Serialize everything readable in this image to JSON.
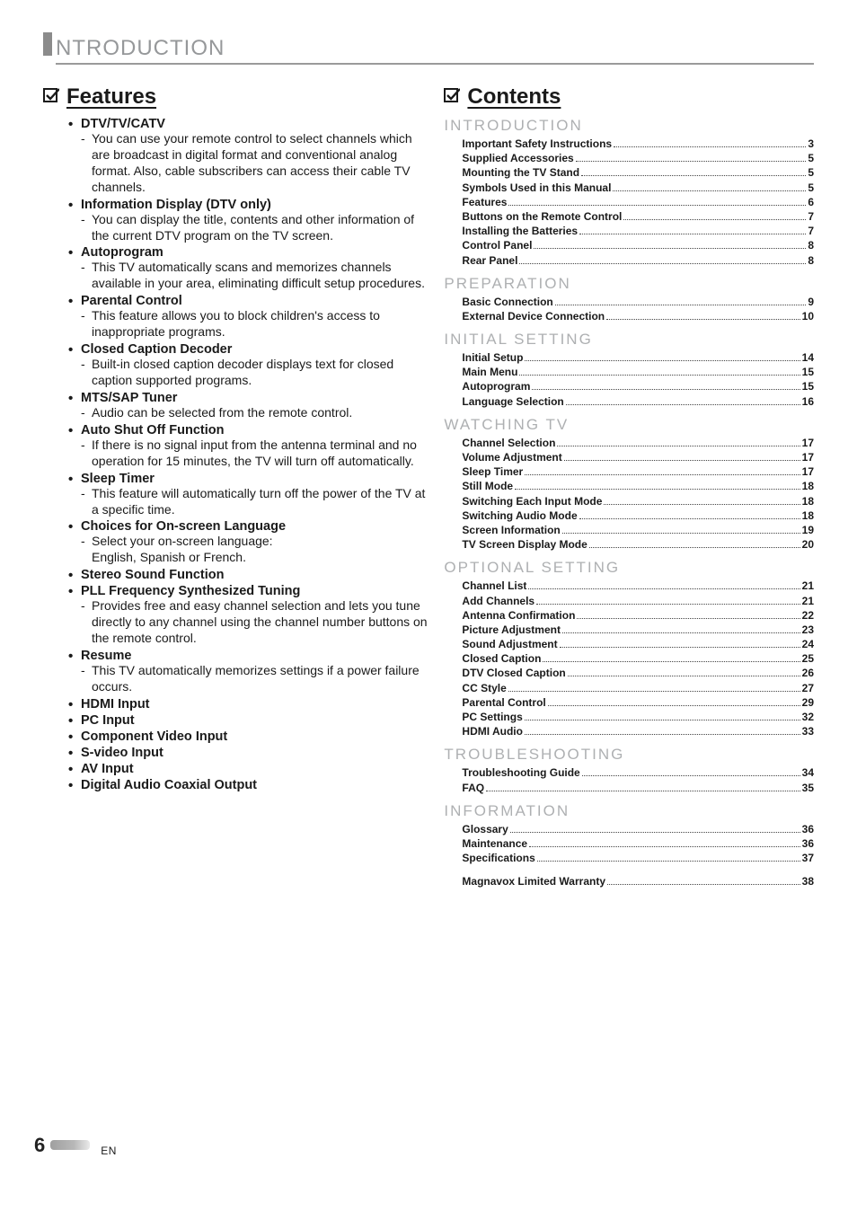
{
  "colors": {
    "chapter_gray": "#96989a",
    "tab_gray": "#8b8b8b",
    "toc_section_gray": "#aeb0b2",
    "text": "#1a1a1a",
    "dot": "#444444",
    "bg": "#ffffff"
  },
  "chapter_title": "NTRODUCTION",
  "chapter_dropcap": "I",
  "left": {
    "section_title": "Features",
    "items": [
      {
        "title": "DTV/TV/CATV",
        "desc": "You can use your remote control to select channels which are broadcast in digital format and conventional analog format. Also, cable subscribers can access their cable TV channels."
      },
      {
        "title": "Information Display (DTV only)",
        "desc": "You can display the title, contents and other information of the current DTV program on the TV screen."
      },
      {
        "title": "Autoprogram",
        "desc": "This TV automatically scans and memorizes channels available in your area, eliminating difficult setup procedures."
      },
      {
        "title": "Parental Control",
        "desc": "This feature allows you to block children's access to inappropriate programs."
      },
      {
        "title": "Closed Caption Decoder",
        "desc": "Built-in closed caption decoder displays text for closed caption supported programs."
      },
      {
        "title": "MTS/SAP Tuner",
        "desc": "Audio can be selected from the remote control."
      },
      {
        "title": "Auto Shut Off Function",
        "desc": "If there is no signal input from the antenna terminal and no operation for 15 minutes, the TV will turn off automatically."
      },
      {
        "title": "Sleep Timer",
        "desc": "This feature will automatically turn off the power of the TV at a specific time."
      },
      {
        "title": "Choices for On-screen Language",
        "desc": "Select your on-screen language:\nEnglish, Spanish or French."
      },
      {
        "title": "Stereo Sound Function"
      },
      {
        "title": "PLL Frequency Synthesized Tuning",
        "desc": "Provides free and easy channel selection and lets you tune directly to any channel using the channel number buttons on the remote control."
      },
      {
        "title": "Resume",
        "desc": "This TV automatically memorizes settings if a power failure occurs."
      },
      {
        "title": "HDMI Input"
      },
      {
        "title": "PC Input"
      },
      {
        "title": "Component Video Input"
      },
      {
        "title": "S-video Input"
      },
      {
        "title": "AV Input"
      },
      {
        "title": "Digital Audio Coaxial Output"
      }
    ]
  },
  "right": {
    "section_title": "Contents",
    "sections": [
      {
        "title": "INTRODUCTION",
        "entries": [
          {
            "label": "Important Safety Instructions",
            "page": "3"
          },
          {
            "label": "Supplied Accessories",
            "page": "5"
          },
          {
            "label": "Mounting the TV Stand",
            "page": "5"
          },
          {
            "label": "Symbols Used in this Manual",
            "page": "5"
          },
          {
            "label": "Features",
            "page": "6"
          },
          {
            "label": "Buttons on the Remote Control",
            "page": "7"
          },
          {
            "label": "Installing the Batteries",
            "page": "7"
          },
          {
            "label": "Control Panel",
            "page": "8"
          },
          {
            "label": "Rear Panel",
            "page": "8"
          }
        ]
      },
      {
        "title": "PREPARATION",
        "entries": [
          {
            "label": "Basic Connection",
            "page": "9"
          },
          {
            "label": "External Device Connection",
            "page": "10"
          }
        ]
      },
      {
        "title": "INITIAL  SETTING",
        "entries": [
          {
            "label": "Initial Setup",
            "page": "14"
          },
          {
            "label": "Main Menu",
            "page": "15"
          },
          {
            "label": "Autoprogram",
            "page": "15"
          },
          {
            "label": "Language Selection",
            "page": "16"
          }
        ]
      },
      {
        "title": "WATCHING  TV",
        "entries": [
          {
            "label": "Channel Selection",
            "page": "17"
          },
          {
            "label": "Volume Adjustment",
            "page": "17"
          },
          {
            "label": "Sleep Timer",
            "page": "17"
          },
          {
            "label": "Still Mode",
            "page": "18"
          },
          {
            "label": "Switching Each Input Mode",
            "page": "18"
          },
          {
            "label": "Switching Audio Mode",
            "page": "18"
          },
          {
            "label": "Screen Information",
            "page": "19"
          },
          {
            "label": "TV Screen Display Mode",
            "page": "20"
          }
        ]
      },
      {
        "title": "OPTIONAL  SETTING",
        "entries": [
          {
            "label": "Channel List",
            "page": "21"
          },
          {
            "label": "Add Channels",
            "page": "21"
          },
          {
            "label": "Antenna Confirmation",
            "page": "22"
          },
          {
            "label": "Picture Adjustment",
            "page": "23"
          },
          {
            "label": "Sound Adjustment",
            "page": "24"
          },
          {
            "label": "Closed Caption",
            "page": "25"
          },
          {
            "label": "DTV Closed Caption",
            "page": "26"
          },
          {
            "label": "CC Style",
            "page": "27"
          },
          {
            "label": "Parental Control",
            "page": "29"
          },
          {
            "label": "PC Settings",
            "page": "32"
          },
          {
            "label": "HDMI Audio",
            "page": "33"
          }
        ]
      },
      {
        "title": "TROUBLESHOOTING",
        "entries": [
          {
            "label": "Troubleshooting Guide",
            "page": "34"
          },
          {
            "label": "FAQ",
            "page": "35"
          }
        ]
      },
      {
        "title": "INFORMATION",
        "entries": [
          {
            "label": "Glossary",
            "page": "36"
          },
          {
            "label": "Maintenance",
            "page": "36"
          },
          {
            "label": "Specifications",
            "page": "37"
          }
        ]
      }
    ],
    "extra": {
      "label": "Magnavox Limited Warranty",
      "page": "38"
    }
  },
  "footer": {
    "page_number": "6",
    "lang": "EN"
  }
}
